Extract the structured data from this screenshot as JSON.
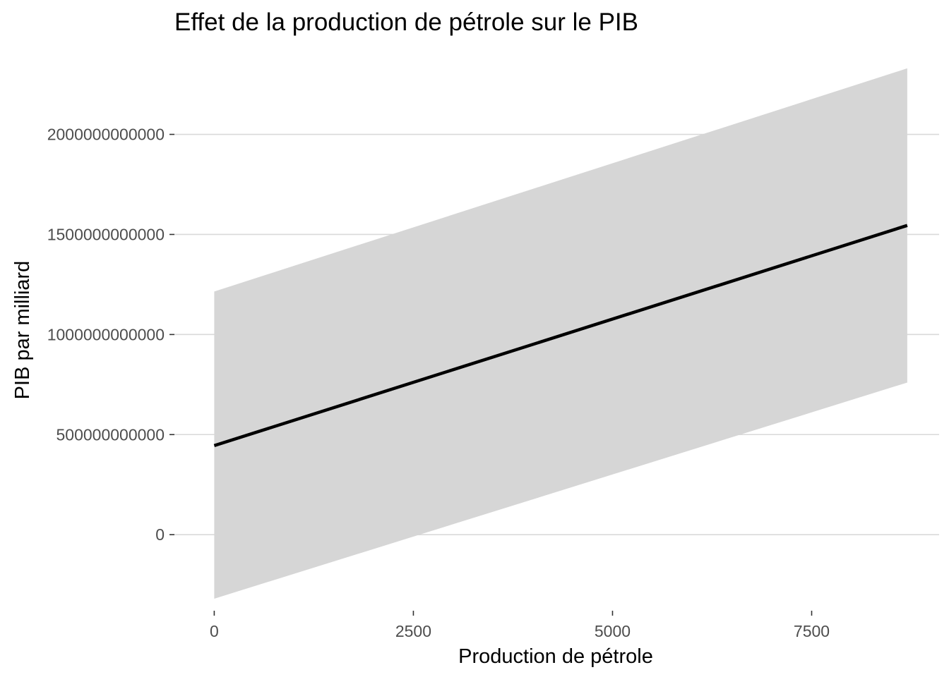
{
  "chart_data": {
    "type": "line",
    "title": "Effet de la production de pétrole sur le PIB",
    "xlabel": "Production de pétrole",
    "ylabel": "PIB par milliard",
    "xlim": [
      -500,
      9100
    ],
    "ylim": [
      -380000000000,
      2460000000000
    ],
    "x_ticks": [
      0,
      2500,
      5000,
      7500
    ],
    "x_tick_labels": [
      "0",
      "2500",
      "5000",
      "7500"
    ],
    "y_ticks": [
      0,
      500000000000,
      1000000000000,
      1500000000000,
      2000000000000
    ],
    "y_tick_labels": [
      "0",
      "500000000000",
      "1000000000000",
      "1500000000000",
      "2000000000000"
    ],
    "grid": "horizontal major",
    "series": [
      {
        "x": [
          0,
          8700
        ],
        "y": [
          445000000000,
          1545000000000
        ],
        "ymin": [
          -320000000000,
          760000000000
        ],
        "ymax": [
          1215000000000,
          2330000000000
        ],
        "line_color": "#000000",
        "band_color": "#d6d6d6"
      }
    ]
  }
}
